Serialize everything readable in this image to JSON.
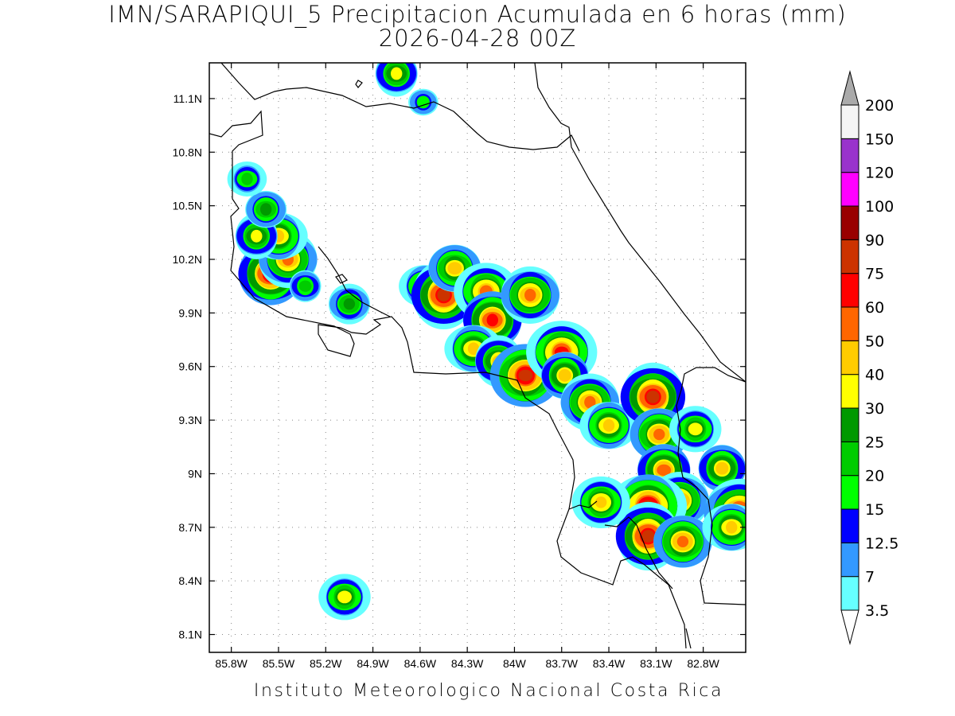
{
  "title_line1": "IMN/SARAPIQUI_5 Precipitacion Acumulada en 6 horas (mm)",
  "title_line2": "2026-04-28 00Z",
  "footer": "Instituto Meteorologico Nacional Costa Rica",
  "map": {
    "lon_range": [
      -85.94,
      -82.53
    ],
    "lat_range": [
      8.0,
      11.3
    ],
    "lon_ticks": [
      {
        "v": -85.8,
        "label": "85.8W"
      },
      {
        "v": -85.5,
        "label": "85.5W"
      },
      {
        "v": -85.2,
        "label": "85.2W"
      },
      {
        "v": -84.9,
        "label": "84.9W"
      },
      {
        "v": -84.6,
        "label": "84.6W"
      },
      {
        "v": -84.3,
        "label": "84.3W"
      },
      {
        "v": -84.0,
        "label": "84W"
      },
      {
        "v": -83.7,
        "label": "83.7W"
      },
      {
        "v": -83.4,
        "label": "83.4W"
      },
      {
        "v": -83.1,
        "label": "83.1W"
      },
      {
        "v": -82.8,
        "label": "82.8W"
      }
    ],
    "lat_ticks": [
      {
        "v": 11.1,
        "label": "11.1N"
      },
      {
        "v": 10.8,
        "label": "10.8N"
      },
      {
        "v": 10.5,
        "label": "10.5N"
      },
      {
        "v": 10.2,
        "label": "10.2N"
      },
      {
        "v": 9.9,
        "label": "9.9N"
      },
      {
        "v": 9.6,
        "label": "9.6N"
      },
      {
        "v": 9.3,
        "label": "9.3N"
      },
      {
        "v": 9.0,
        "label": "9N"
      },
      {
        "v": 8.7,
        "label": "8.7N"
      },
      {
        "v": 8.4,
        "label": "8.4N"
      },
      {
        "v": 8.1,
        "label": "8.1N"
      }
    ],
    "grid": "dotted"
  },
  "colorbar": {
    "levels": [
      "3.5",
      "7",
      "12.5",
      "15",
      "20",
      "25",
      "30",
      "40",
      "50",
      "60",
      "75",
      "90",
      "100",
      "120",
      "150",
      "200"
    ],
    "colors": [
      "#66ffff",
      "#3399ff",
      "#0000ff",
      "#00ff00",
      "#00cc00",
      "#009900",
      "#ffff00",
      "#ffcc00",
      "#ff6600",
      "#ff0000",
      "#cc3300",
      "#990000",
      "#ff00ff",
      "#9933cc",
      "#f5f5f5"
    ],
    "under_color": "#ffffff",
    "over_color": "#aaaaaa"
  },
  "precip_cells": [
    {
      "lon": -85.55,
      "lat": 10.12,
      "max": "75"
    },
    {
      "lon": -85.44,
      "lat": 10.2,
      "max": "50"
    },
    {
      "lon": -85.5,
      "lat": 10.33,
      "max": "40"
    },
    {
      "lon": -85.64,
      "lat": 10.33,
      "max": "30"
    },
    {
      "lon": -85.58,
      "lat": 10.48,
      "max": "25"
    },
    {
      "lon": -85.7,
      "lat": 10.65,
      "max": "20"
    },
    {
      "lon": -85.33,
      "lat": 10.05,
      "max": "20"
    },
    {
      "lon": -85.05,
      "lat": 9.95,
      "max": "25"
    },
    {
      "lon": -84.57,
      "lat": 10.05,
      "max": "30"
    },
    {
      "lon": -84.45,
      "lat": 10.0,
      "max": "75"
    },
    {
      "lon": -84.38,
      "lat": 10.15,
      "max": "40"
    },
    {
      "lon": -84.18,
      "lat": 10.02,
      "max": "50"
    },
    {
      "lon": -84.14,
      "lat": 9.86,
      "max": "60"
    },
    {
      "lon": -83.9,
      "lat": 10.0,
      "max": "50"
    },
    {
      "lon": -84.26,
      "lat": 9.7,
      "max": "40"
    },
    {
      "lon": -84.1,
      "lat": 9.63,
      "max": "40"
    },
    {
      "lon": -83.93,
      "lat": 9.55,
      "max": "75"
    },
    {
      "lon": -83.7,
      "lat": 9.68,
      "max": "60"
    },
    {
      "lon": -83.68,
      "lat": 9.55,
      "max": "40"
    },
    {
      "lon": -83.52,
      "lat": 9.4,
      "max": "50"
    },
    {
      "lon": -83.4,
      "lat": 9.27,
      "max": "40"
    },
    {
      "lon": -83.12,
      "lat": 9.43,
      "max": "75"
    },
    {
      "lon": -83.08,
      "lat": 9.22,
      "max": "50"
    },
    {
      "lon": -82.85,
      "lat": 9.25,
      "max": "30"
    },
    {
      "lon": -83.05,
      "lat": 9.02,
      "max": "50"
    },
    {
      "lon": -82.95,
      "lat": 8.85,
      "max": "50"
    },
    {
      "lon": -83.15,
      "lat": 8.82,
      "max": "75"
    },
    {
      "lon": -83.15,
      "lat": 8.65,
      "max": "75"
    },
    {
      "lon": -82.93,
      "lat": 8.62,
      "max": "50"
    },
    {
      "lon": -83.45,
      "lat": 8.84,
      "max": "40"
    },
    {
      "lon": -82.68,
      "lat": 9.03,
      "max": "40"
    },
    {
      "lon": -82.57,
      "lat": 8.78,
      "max": "75"
    },
    {
      "lon": -82.62,
      "lat": 8.7,
      "max": "40"
    },
    {
      "lon": -84.75,
      "lat": 11.24,
      "max": "30"
    },
    {
      "lon": -84.58,
      "lat": 11.08,
      "max": "15"
    },
    {
      "lon": -85.08,
      "lat": 8.31,
      "max": "30"
    }
  ]
}
